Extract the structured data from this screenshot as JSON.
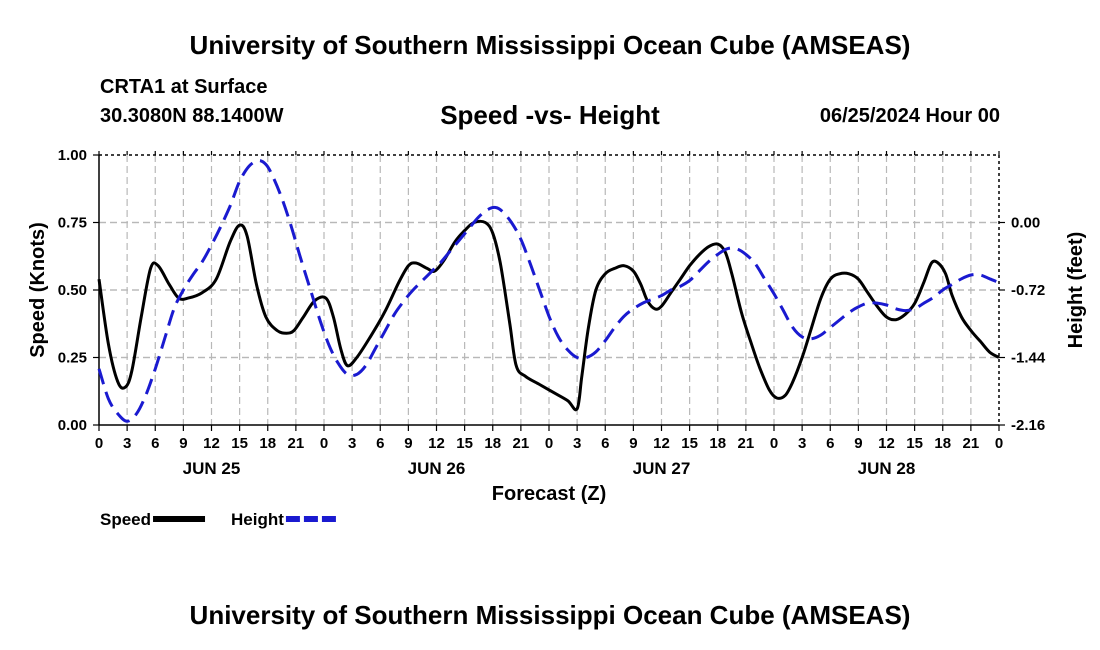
{
  "header": {
    "title": "University of Southern Mississippi Ocean Cube (AMSEAS)",
    "station": "CRTA1 at Surface",
    "coords": "30.3080N  88.1400W",
    "subtitle": "Speed -vs- Height",
    "datetime": "06/25/2024 Hour 00"
  },
  "footer": {
    "title": "University of Southern Mississippi Ocean Cube (AMSEAS)"
  },
  "chart_data": {
    "type": "line",
    "title": "Speed -vs- Height",
    "xlabel": "Forecast (Z)",
    "ylabel": "Speed (Knots)",
    "y2label": "Height (feet)",
    "x_hours_range": [
      0,
      96
    ],
    "ylim": [
      0,
      1
    ],
    "y2lim": [
      -2.16,
      0.72
    ],
    "yticks": [
      0.0,
      0.25,
      0.5,
      0.75,
      1.0
    ],
    "yticklabels": [
      "0.00",
      "0.25",
      "0.50",
      "0.75",
      "1.00"
    ],
    "y2ticks": [
      -2.16,
      -1.44,
      -0.72,
      0.0
    ],
    "y2ticklabels": [
      "-2.16",
      "-1.44",
      "-0.72",
      "0.00"
    ],
    "xticklabels": [
      "0",
      "3",
      "6",
      "9",
      "12",
      "15",
      "18",
      "21",
      "0",
      "3",
      "6",
      "9",
      "12",
      "15",
      "18",
      "21",
      "0",
      "3",
      "6",
      "9",
      "12",
      "15",
      "18",
      "21",
      "0",
      "3",
      "6",
      "9",
      "12",
      "15",
      "18",
      "21",
      "0"
    ],
    "day_labels": [
      {
        "label": "JUN 25",
        "hour": 12
      },
      {
        "label": "JUN 26",
        "hour": 36
      },
      {
        "label": "JUN 27",
        "hour": 60
      },
      {
        "label": "JUN 28",
        "hour": 84
      }
    ],
    "grid": true,
    "series": [
      {
        "name": "Speed",
        "axis": "left",
        "color": "#000000",
        "style": "solid",
        "points": [
          [
            0,
            0.54
          ],
          [
            1,
            0.3
          ],
          [
            2,
            0.16
          ],
          [
            2.8,
            0.14
          ],
          [
            3.5,
            0.2
          ],
          [
            4.5,
            0.4
          ],
          [
            5.5,
            0.58
          ],
          [
            6.3,
            0.59
          ],
          [
            7.5,
            0.52
          ],
          [
            8.5,
            0.47
          ],
          [
            9.5,
            0.47
          ],
          [
            11,
            0.49
          ],
          [
            12.5,
            0.54
          ],
          [
            14,
            0.68
          ],
          [
            15,
            0.74
          ],
          [
            15.8,
            0.7
          ],
          [
            16.8,
            0.52
          ],
          [
            17.8,
            0.4
          ],
          [
            19,
            0.35
          ],
          [
            20,
            0.34
          ],
          [
            20.8,
            0.35
          ],
          [
            21.8,
            0.4
          ],
          [
            23,
            0.46
          ],
          [
            24.2,
            0.47
          ],
          [
            25,
            0.4
          ],
          [
            25.8,
            0.28
          ],
          [
            26.5,
            0.22
          ],
          [
            27.5,
            0.25
          ],
          [
            29,
            0.33
          ],
          [
            30.5,
            0.42
          ],
          [
            32,
            0.53
          ],
          [
            33,
            0.59
          ],
          [
            33.8,
            0.6
          ],
          [
            35,
            0.58
          ],
          [
            35.8,
            0.57
          ],
          [
            36.8,
            0.61
          ],
          [
            38,
            0.68
          ],
          [
            39,
            0.72
          ],
          [
            40,
            0.75
          ],
          [
            41.2,
            0.75
          ],
          [
            42,
            0.71
          ],
          [
            42.8,
            0.6
          ],
          [
            43.8,
            0.38
          ],
          [
            44.5,
            0.22
          ],
          [
            45.5,
            0.18
          ],
          [
            47,
            0.15
          ],
          [
            48.5,
            0.12
          ],
          [
            50,
            0.09
          ],
          [
            51,
            0.06
          ],
          [
            51.5,
            0.18
          ],
          [
            52.2,
            0.36
          ],
          [
            53,
            0.5
          ],
          [
            54,
            0.56
          ],
          [
            55,
            0.58
          ],
          [
            56,
            0.59
          ],
          [
            57,
            0.57
          ],
          [
            57.8,
            0.52
          ],
          [
            58.5,
            0.46
          ],
          [
            59.3,
            0.43
          ],
          [
            60,
            0.44
          ],
          [
            61,
            0.49
          ],
          [
            62,
            0.54
          ],
          [
            63,
            0.59
          ],
          [
            64,
            0.63
          ],
          [
            65,
            0.66
          ],
          [
            66,
            0.67
          ],
          [
            66.8,
            0.64
          ],
          [
            67.5,
            0.56
          ],
          [
            68.5,
            0.42
          ],
          [
            69.5,
            0.31
          ],
          [
            70.5,
            0.21
          ],
          [
            71.5,
            0.13
          ],
          [
            72.3,
            0.1
          ],
          [
            73.2,
            0.11
          ],
          [
            74,
            0.16
          ],
          [
            75,
            0.25
          ],
          [
            76,
            0.36
          ],
          [
            77,
            0.47
          ],
          [
            78,
            0.54
          ],
          [
            79,
            0.56
          ],
          [
            80,
            0.56
          ],
          [
            81,
            0.54
          ],
          [
            82,
            0.49
          ],
          [
            83,
            0.44
          ],
          [
            84,
            0.4
          ],
          [
            85,
            0.39
          ],
          [
            86,
            0.41
          ],
          [
            87,
            0.45
          ],
          [
            88,
            0.53
          ],
          [
            88.8,
            0.6
          ],
          [
            89.5,
            0.6
          ],
          [
            90.3,
            0.56
          ],
          [
            91,
            0.48
          ],
          [
            92,
            0.4
          ],
          [
            93,
            0.35
          ],
          [
            94,
            0.31
          ],
          [
            95,
            0.27
          ],
          [
            96,
            0.25
          ]
        ]
      },
      {
        "name": "Height",
        "axis": "right",
        "color": "#1a1ad0",
        "style": "dashed",
        "points": [
          [
            0,
            -1.56
          ],
          [
            1,
            -1.88
          ],
          [
            2,
            -2.04
          ],
          [
            3,
            -2.12
          ],
          [
            4,
            -2.04
          ],
          [
            5,
            -1.84
          ],
          [
            6,
            -1.56
          ],
          [
            7,
            -1.24
          ],
          [
            8,
            -0.92
          ],
          [
            9,
            -0.72
          ],
          [
            10,
            -0.56
          ],
          [
            11,
            -0.42
          ],
          [
            12,
            -0.24
          ],
          [
            13,
            -0.04
          ],
          [
            14,
            0.18
          ],
          [
            15,
            0.44
          ],
          [
            16,
            0.6
          ],
          [
            17,
            0.66
          ],
          [
            17.8,
            0.62
          ],
          [
            18.5,
            0.5
          ],
          [
            19.5,
            0.26
          ],
          [
            20.5,
            -0.04
          ],
          [
            21.5,
            -0.38
          ],
          [
            22.5,
            -0.7
          ],
          [
            23.5,
            -1.02
          ],
          [
            24.5,
            -1.3
          ],
          [
            25.5,
            -1.5
          ],
          [
            26.5,
            -1.62
          ],
          [
            27.5,
            -1.62
          ],
          [
            28.5,
            -1.52
          ],
          [
            29.5,
            -1.34
          ],
          [
            30.5,
            -1.16
          ],
          [
            31.5,
            -0.98
          ],
          [
            32.5,
            -0.84
          ],
          [
            33.5,
            -0.72
          ],
          [
            34.5,
            -0.62
          ],
          [
            35.5,
            -0.52
          ],
          [
            36.5,
            -0.42
          ],
          [
            37.5,
            -0.3
          ],
          [
            38.5,
            -0.18
          ],
          [
            39.5,
            -0.06
          ],
          [
            40.5,
            0.06
          ],
          [
            41.5,
            0.14
          ],
          [
            42.3,
            0.16
          ],
          [
            43,
            0.12
          ],
          [
            44,
            0.0
          ],
          [
            45,
            -0.18
          ],
          [
            46,
            -0.44
          ],
          [
            47,
            -0.72
          ],
          [
            48,
            -1.0
          ],
          [
            49,
            -1.22
          ],
          [
            50,
            -1.36
          ],
          [
            51,
            -1.44
          ],
          [
            52,
            -1.44
          ],
          [
            53,
            -1.38
          ],
          [
            54,
            -1.26
          ],
          [
            55,
            -1.12
          ],
          [
            56,
            -1.0
          ],
          [
            57,
            -0.92
          ],
          [
            58,
            -0.86
          ],
          [
            59,
            -0.82
          ],
          [
            60,
            -0.78
          ],
          [
            61,
            -0.72
          ],
          [
            62,
            -0.68
          ],
          [
            63,
            -0.62
          ],
          [
            64,
            -0.52
          ],
          [
            65,
            -0.42
          ],
          [
            66,
            -0.34
          ],
          [
            67,
            -0.28
          ],
          [
            68,
            -0.28
          ],
          [
            69,
            -0.34
          ],
          [
            70,
            -0.44
          ],
          [
            71,
            -0.6
          ],
          [
            72,
            -0.76
          ],
          [
            73,
            -0.94
          ],
          [
            74,
            -1.12
          ],
          [
            75,
            -1.22
          ],
          [
            76,
            -1.24
          ],
          [
            77,
            -1.2
          ],
          [
            78,
            -1.12
          ],
          [
            79,
            -1.04
          ],
          [
            80,
            -0.96
          ],
          [
            81,
            -0.9
          ],
          [
            82,
            -0.86
          ],
          [
            83,
            -0.86
          ],
          [
            84,
            -0.88
          ],
          [
            85,
            -0.92
          ],
          [
            86,
            -0.94
          ],
          [
            87,
            -0.92
          ],
          [
            88,
            -0.86
          ],
          [
            89,
            -0.8
          ],
          [
            90,
            -0.72
          ],
          [
            91,
            -0.66
          ],
          [
            92,
            -0.6
          ],
          [
            93,
            -0.56
          ],
          [
            94,
            -0.56
          ],
          [
            95,
            -0.6
          ],
          [
            96,
            -0.64
          ]
        ]
      }
    ],
    "legend": [
      {
        "label": "Speed",
        "color": "#000000",
        "style": "solid"
      },
      {
        "label": "Height",
        "color": "#1a1ad0",
        "style": "dashed"
      }
    ]
  }
}
